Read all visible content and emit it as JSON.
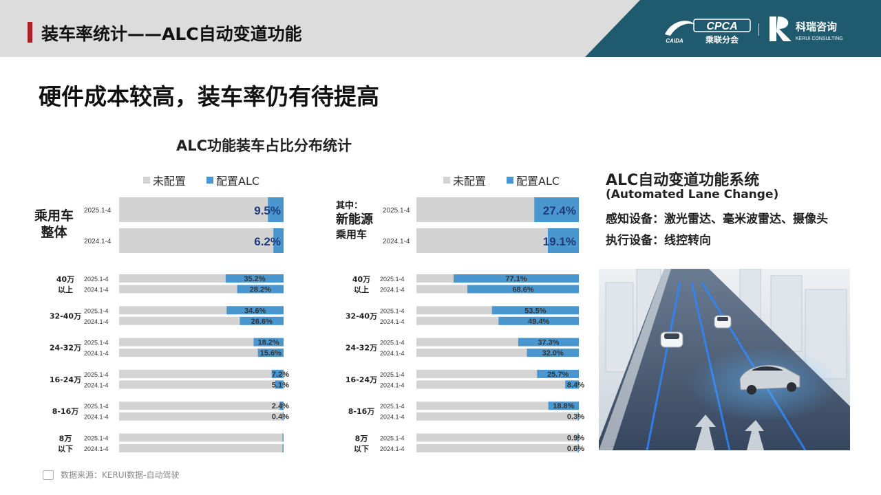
{
  "header": {
    "title": "装车率统计——ALC自动变道功能",
    "logo_left_text": "CPCA",
    "logo_left_cn": "乘联分会",
    "logo_left_small": "CAIDA",
    "logo_right_cn": "科瑞咨询",
    "logo_right_en": "KERUI CONSULTING"
  },
  "subtitle": "硬件成本较高，装车率仍有待提高",
  "chart_title": "ALC功能装车占比分布统计",
  "legend": {
    "off": "未配置",
    "on": "配置ALC"
  },
  "colors": {
    "off": "#d3d3d3",
    "on": "#4a96cf",
    "big_label": "#1f3a7a",
    "accent": "#b11f24",
    "teal": "#1f5a6e"
  },
  "groups": {
    "left_total": [
      "乘用车",
      "整体"
    ],
    "right_total": [
      "其中：",
      "新能源",
      "乘用车"
    ]
  },
  "chart_data": [
    {
      "type": "bar",
      "orientation": "horizontal-stacked",
      "segment": "乘用车整体",
      "series": [
        "未配置",
        "配置ALC"
      ],
      "totals": [
        {
          "period": "2025.1-4",
          "alc_pct": 9.5
        },
        {
          "period": "2024.1-4",
          "alc_pct": 6.2
        }
      ],
      "price_bands": [
        {
          "band": [
            "40万",
            "以上"
          ],
          "rows": [
            {
              "period": "2025.1-4",
              "alc_pct": 35.2
            },
            {
              "period": "2024.1-4",
              "alc_pct": 28.2
            }
          ]
        },
        {
          "band": [
            "32-40万"
          ],
          "rows": [
            {
              "period": "2025.1-4",
              "alc_pct": 34.6
            },
            {
              "period": "2024.1-4",
              "alc_pct": 26.6
            }
          ]
        },
        {
          "band": [
            "24-32万"
          ],
          "rows": [
            {
              "period": "2025.1-4",
              "alc_pct": 18.2
            },
            {
              "period": "2024.1-4",
              "alc_pct": 15.6
            }
          ]
        },
        {
          "band": [
            "16-24万"
          ],
          "rows": [
            {
              "period": "2025.1-4",
              "alc_pct": 7.2
            },
            {
              "period": "2024.1-4",
              "alc_pct": 5.1
            }
          ]
        },
        {
          "band": [
            "8-16万"
          ],
          "rows": [
            {
              "period": "2025.1-4",
              "alc_pct": 2.4
            },
            {
              "period": "2024.1-4",
              "alc_pct": 0.4
            }
          ]
        },
        {
          "band": [
            "8万",
            "以下"
          ],
          "rows": [
            {
              "period": "2025.1-4",
              "alc_pct": 0.2
            },
            {
              "period": "2024.1-4",
              "alc_pct": 0.1
            }
          ]
        }
      ]
    },
    {
      "type": "bar",
      "orientation": "horizontal-stacked",
      "segment": "新能源乘用车",
      "series": [
        "未配置",
        "配置ALC"
      ],
      "totals": [
        {
          "period": "2025.1-4",
          "alc_pct": 27.4
        },
        {
          "period": "2024.1-4",
          "alc_pct": 19.1
        }
      ],
      "price_bands": [
        {
          "band": [
            "40万",
            "以上"
          ],
          "rows": [
            {
              "period": "2025.1-4",
              "alc_pct": 77.1
            },
            {
              "period": "2024.1-4",
              "alc_pct": 68.6
            }
          ]
        },
        {
          "band": [
            "32-40万"
          ],
          "rows": [
            {
              "period": "2025.1-4",
              "alc_pct": 53.5
            },
            {
              "period": "2024.1-4",
              "alc_pct": 49.4
            }
          ]
        },
        {
          "band": [
            "24-32万"
          ],
          "rows": [
            {
              "period": "2025.1-4",
              "alc_pct": 37.3
            },
            {
              "period": "2024.1-4",
              "alc_pct": 32.0
            }
          ]
        },
        {
          "band": [
            "16-24万"
          ],
          "rows": [
            {
              "period": "2025.1-4",
              "alc_pct": 25.7
            },
            {
              "period": "2024.1-4",
              "alc_pct": 8.4
            }
          ]
        },
        {
          "band": [
            "8-16万"
          ],
          "rows": [
            {
              "period": "2025.1-4",
              "alc_pct": 18.8
            },
            {
              "period": "2024.1-4",
              "alc_pct": 0.3
            }
          ]
        },
        {
          "band": [
            "8万",
            "以下"
          ],
          "rows": [
            {
              "period": "2025.1-4",
              "alc_pct": 0.9
            },
            {
              "period": "2024.1-4",
              "alc_pct": 0.6
            }
          ]
        }
      ]
    }
  ],
  "side_panel": {
    "title": "ALC自动变道功能系统",
    "subtitle": "(Automated Lane Change)",
    "line1": "感知设备：激光雷达、毫米波雷达、摄像头",
    "line2": "执行设备：线控转向"
  },
  "source": "数据来源：KERUI数据-自动驾驶"
}
